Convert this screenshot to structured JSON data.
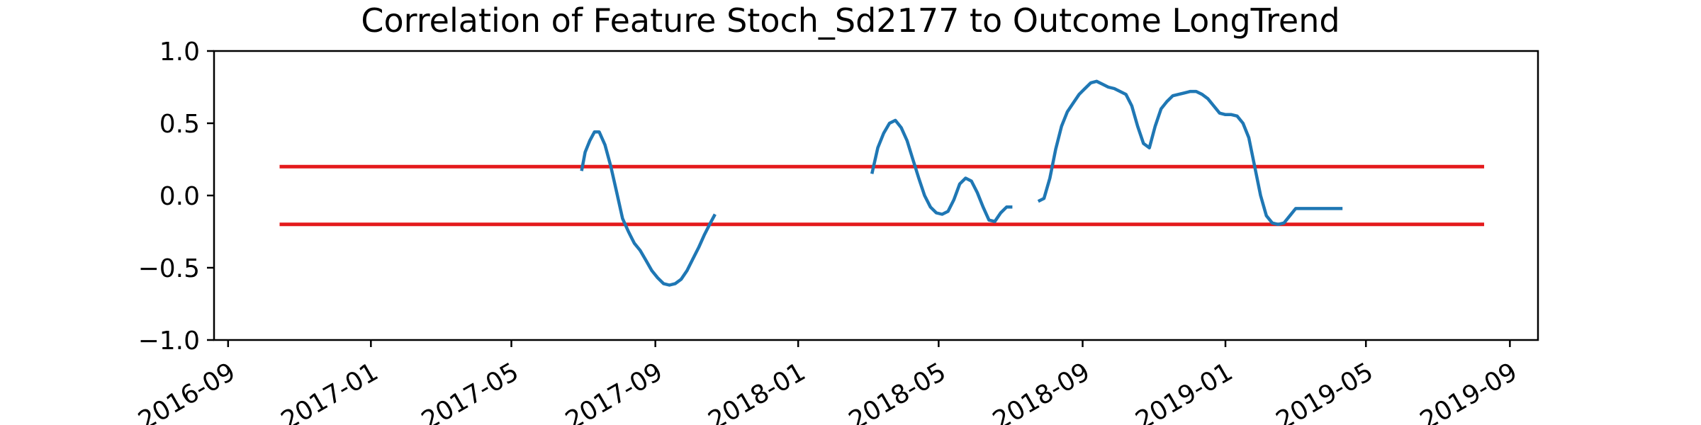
{
  "chart_data": {
    "type": "line",
    "title": "Correlation of Feature Stoch_Sd2177 to Outcome LongTrend",
    "xlabel": "",
    "ylabel": "",
    "xlim": [
      "2016-08-20",
      "2019-09-25"
    ],
    "ylim": [
      -1.0,
      1.0
    ],
    "grid": false,
    "legend": "none",
    "x_ticks": [
      "2016-09",
      "2017-01",
      "2017-05",
      "2017-09",
      "2018-01",
      "2018-05",
      "2018-09",
      "2019-01",
      "2019-05",
      "2019-09"
    ],
    "y_ticks": [
      "1.0",
      "0.5",
      "0.0",
      "−0.5",
      "−1.0"
    ],
    "threshold_lines": [
      {
        "value": 0.2,
        "x_start": "2016-10-15",
        "x_end": "2019-08-10",
        "color": "#e41a1c"
      },
      {
        "value": -0.2,
        "x_start": "2016-10-15",
        "x_end": "2019-08-10",
        "color": "#e41a1c"
      }
    ],
    "series_color": "#1f77b4",
    "series": [
      {
        "x": [
          "2017-06-30",
          "2017-07-03",
          "2017-07-07",
          "2017-07-11",
          "2017-07-15",
          "2017-07-20",
          "2017-07-25",
          "2017-07-30",
          "2017-08-04",
          "2017-08-09",
          "2017-08-14",
          "2017-08-19",
          "2017-08-24",
          "2017-08-29",
          "2017-09-03",
          "2017-09-08",
          "2017-09-13",
          "2017-09-18",
          "2017-09-23",
          "2017-09-28",
          "2017-10-03",
          "2017-10-08",
          "2017-10-13",
          "2017-10-18",
          "2017-10-22"
        ],
        "y": [
          0.17,
          0.3,
          0.38,
          0.44,
          0.44,
          0.35,
          0.2,
          0.02,
          -0.16,
          -0.25,
          -0.33,
          -0.38,
          -0.45,
          -0.52,
          -0.57,
          -0.61,
          -0.62,
          -0.61,
          -0.58,
          -0.52,
          -0.44,
          -0.36,
          -0.27,
          -0.19,
          -0.13
        ]
      },
      {
        "x": [
          "2018-03-05",
          "2018-03-10",
          "2018-03-15",
          "2018-03-20",
          "2018-03-25",
          "2018-03-30",
          "2018-04-04",
          "2018-04-09",
          "2018-04-14",
          "2018-04-19",
          "2018-04-24",
          "2018-04-29",
          "2018-05-04",
          "2018-05-09",
          "2018-05-14",
          "2018-05-19",
          "2018-05-24",
          "2018-05-29",
          "2018-06-03",
          "2018-06-08",
          "2018-06-13",
          "2018-06-18",
          "2018-06-23",
          "2018-06-28",
          "2018-07-03"
        ],
        "y": [
          0.15,
          0.33,
          0.43,
          0.5,
          0.52,
          0.47,
          0.38,
          0.25,
          0.12,
          0.0,
          -0.08,
          -0.12,
          -0.13,
          -0.11,
          -0.03,
          0.08,
          0.12,
          0.1,
          0.02,
          -0.08,
          -0.17,
          -0.18,
          -0.12,
          -0.08,
          -0.08
        ]
      },
      {
        "x": [
          "2018-07-25",
          "2018-07-30",
          "2018-08-04",
          "2018-08-09",
          "2018-08-14",
          "2018-08-19",
          "2018-08-24",
          "2018-08-29",
          "2018-09-03",
          "2018-09-08",
          "2018-09-13",
          "2018-09-18",
          "2018-09-23",
          "2018-09-28",
          "2018-10-03",
          "2018-10-08",
          "2018-10-13",
          "2018-10-18",
          "2018-10-23",
          "2018-10-28",
          "2018-11-02",
          "2018-11-07",
          "2018-11-12",
          "2018-11-17",
          "2018-11-22",
          "2018-11-27",
          "2018-12-02",
          "2018-12-07",
          "2018-12-12",
          "2018-12-17",
          "2018-12-22",
          "2018-12-27",
          "2019-01-01",
          "2019-01-06",
          "2019-01-11",
          "2019-01-16",
          "2019-01-21",
          "2019-01-26",
          "2019-01-31",
          "2019-02-05",
          "2019-02-10",
          "2019-02-15",
          "2019-02-20",
          "2019-02-25",
          "2019-03-02",
          "2019-03-07",
          "2019-03-12",
          "2019-03-17",
          "2019-03-22",
          "2019-03-27",
          "2019-04-01",
          "2019-04-06",
          "2019-04-11"
        ],
        "y": [
          -0.04,
          -0.02,
          0.12,
          0.32,
          0.48,
          0.58,
          0.64,
          0.7,
          0.74,
          0.78,
          0.79,
          0.77,
          0.75,
          0.74,
          0.72,
          0.7,
          0.62,
          0.48,
          0.36,
          0.33,
          0.48,
          0.6,
          0.65,
          0.69,
          0.7,
          0.71,
          0.72,
          0.72,
          0.7,
          0.67,
          0.62,
          0.57,
          0.56,
          0.56,
          0.55,
          0.5,
          0.4,
          0.2,
          0.0,
          -0.14,
          -0.19,
          -0.2,
          -0.19,
          -0.14,
          -0.09,
          -0.09,
          -0.09,
          -0.09,
          -0.09,
          -0.09,
          -0.09,
          -0.09,
          -0.09
        ]
      }
    ]
  }
}
